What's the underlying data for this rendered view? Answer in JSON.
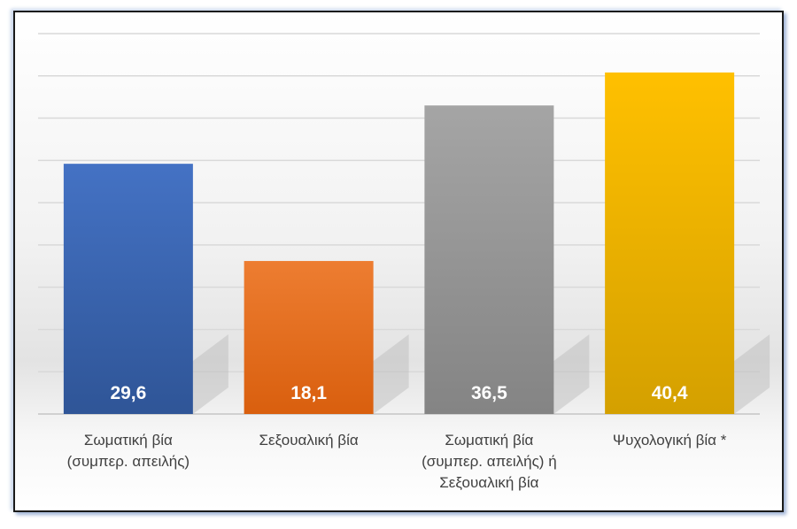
{
  "chart_data": {
    "type": "bar",
    "categories": [
      [
        "Σωματική βία",
        "(συμπερ. απειλής)"
      ],
      [
        "Σεξουαλική βία"
      ],
      [
        "Σωματική βία",
        "(συμπερ. απειλής) ή",
        "Σεξουαλική βία"
      ],
      [
        "Ψυχολογική βία *"
      ]
    ],
    "values": [
      29.6,
      18.1,
      36.5,
      40.4
    ],
    "value_labels": [
      "29,6",
      "18,1",
      "36,5",
      "40,4"
    ],
    "colors": [
      [
        "#4472c4",
        "#2f5597"
      ],
      [
        "#ed7d31",
        "#d95f0e"
      ],
      [
        "#a5a5a5",
        "#848484"
      ],
      [
        "#ffc000",
        "#d4a000"
      ]
    ],
    "title": "",
    "xlabel": "",
    "ylabel": "",
    "ylim": [
      0,
      45
    ],
    "ytick_step": 5,
    "grid": true,
    "legend": "none"
  }
}
